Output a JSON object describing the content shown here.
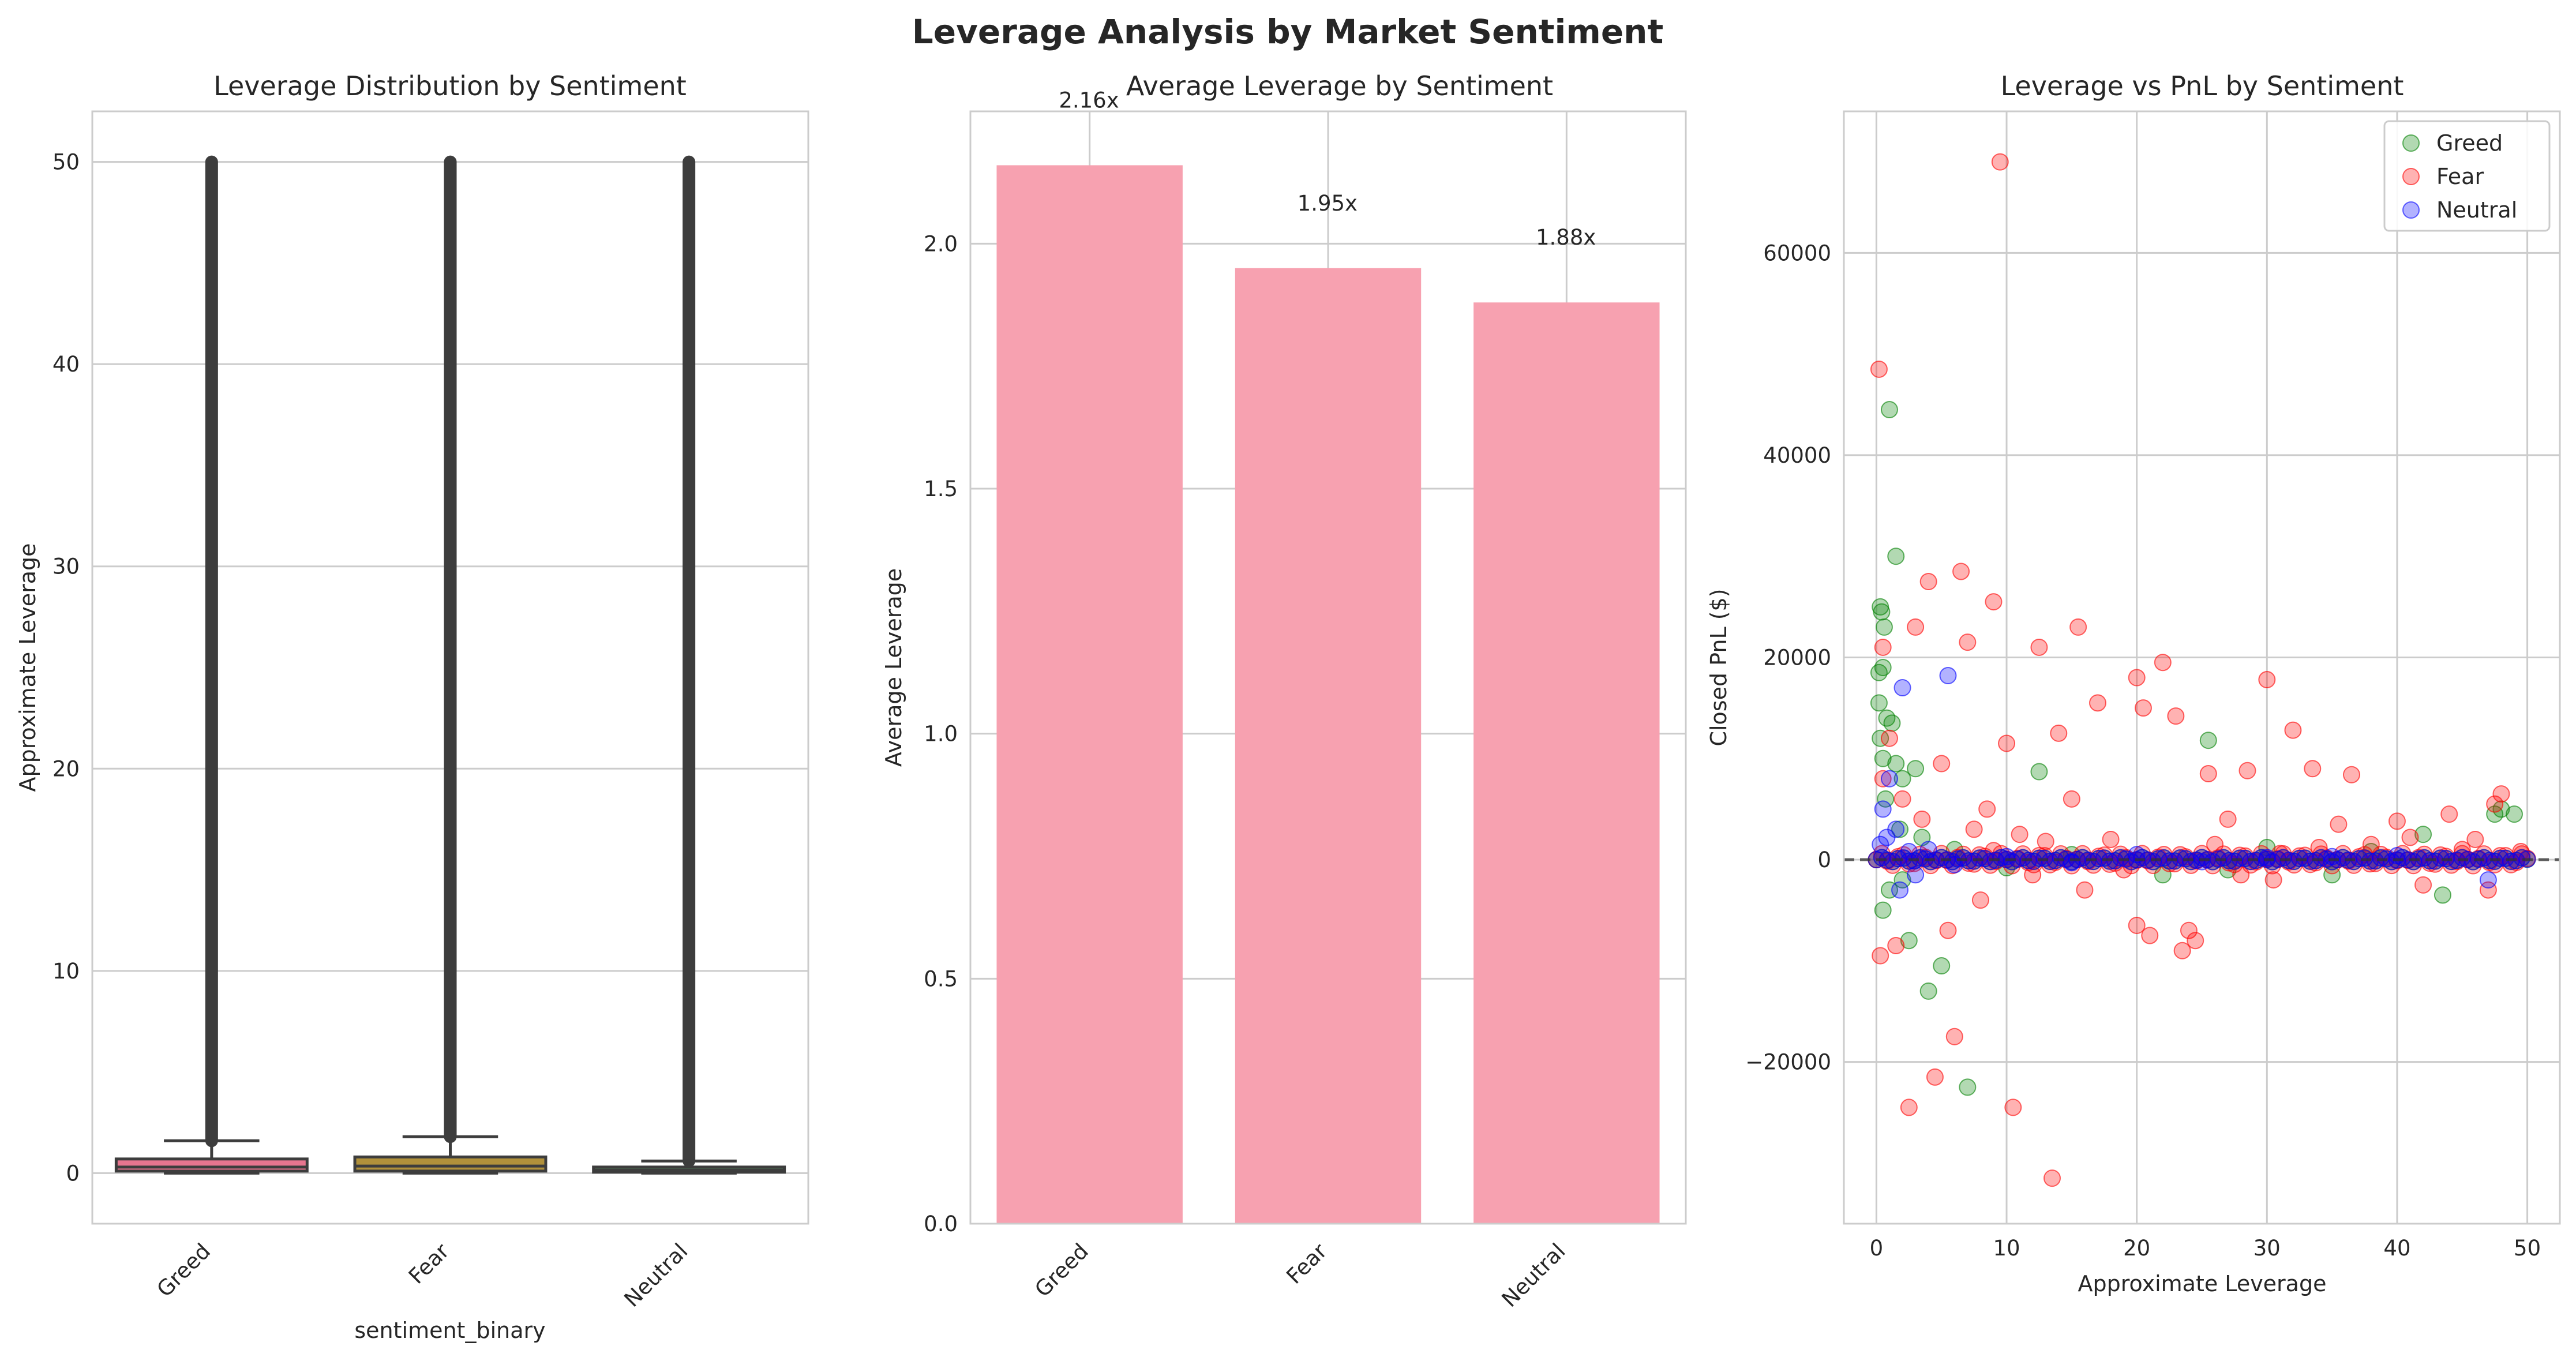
{
  "figure": {
    "title": "Leverage Analysis by Market Sentiment"
  },
  "colors": {
    "greed_box": "#e8758f",
    "fear_box": "#b1913b",
    "neutral_box": "#5a9d6a",
    "bar": "#f7a1b0",
    "greed_point": "#008000",
    "fear_point": "#ff0000",
    "neutral_point": "#0000ff"
  },
  "chart_data": [
    {
      "type": "box",
      "title": "Leverage Distribution by Sentiment",
      "xlabel": "sentiment_binary",
      "ylabel": "Approximate Leverage",
      "categories": [
        "Greed",
        "Fear",
        "Neutral"
      ],
      "boxes": [
        {
          "name": "Greed",
          "q1": 0.1,
          "median": 0.3,
          "q3": 0.7,
          "whisker_low": 0.0,
          "whisker_high": 1.6,
          "outliers_range": [
            1.6,
            50
          ]
        },
        {
          "name": "Fear",
          "q1": 0.1,
          "median": 0.35,
          "q3": 0.8,
          "whisker_low": 0.0,
          "whisker_high": 1.8,
          "outliers_range": [
            1.8,
            50
          ]
        },
        {
          "name": "Neutral",
          "q1": 0.05,
          "median": 0.15,
          "q3": 0.3,
          "whisker_low": 0.0,
          "whisker_high": 0.6,
          "outliers_range": [
            0.6,
            50
          ]
        }
      ],
      "ylim": [
        -2.5,
        52.5
      ],
      "yticks": [
        0,
        10,
        20,
        30,
        40,
        50
      ],
      "grid": true
    },
    {
      "type": "bar",
      "title": "Average Leverage by Sentiment",
      "xlabel": "",
      "ylabel": "Average Leverage",
      "categories": [
        "Greed",
        "Fear",
        "Neutral"
      ],
      "values": [
        2.16,
        1.95,
        1.88
      ],
      "data_labels": [
        "2.16x",
        "1.95x",
        "1.88x"
      ],
      "ylim": [
        0,
        2.27
      ],
      "yticks": [
        0.0,
        0.5,
        1.0,
        1.5,
        2.0
      ],
      "ytick_labels": [
        "0.0",
        "0.5",
        "1.0",
        "1.5",
        "2.0"
      ],
      "grid": true
    },
    {
      "type": "scatter",
      "title": "Leverage vs PnL by Sentiment",
      "xlabel": "Approximate Leverage",
      "ylabel": "Closed PnL ($)",
      "xlim": [
        -2.5,
        52.5
      ],
      "ylim": [
        -36000,
        74000
      ],
      "xticks": [
        0,
        10,
        20,
        30,
        40,
        50
      ],
      "yticks": [
        -20000,
        0,
        20000,
        40000,
        60000
      ],
      "reference_line_y": 0,
      "legend_position": "top-right",
      "grid": true,
      "series": [
        {
          "name": "Greed",
          "points": [
            [
              0.2,
              18500
            ],
            [
              0.5,
              19000
            ],
            [
              1.0,
              44500
            ],
            [
              1.5,
              30000
            ],
            [
              0.3,
              25000
            ],
            [
              0.4,
              24500
            ],
            [
              0.6,
              23000
            ],
            [
              0.2,
              15500
            ],
            [
              0.8,
              14000
            ],
            [
              1.2,
              13500
            ],
            [
              0.5,
              10000
            ],
            [
              1.5,
              9500
            ],
            [
              2.0,
              8000
            ],
            [
              3.0,
              9000
            ],
            [
              12.5,
              8700
            ],
            [
              25.5,
              11800
            ],
            [
              2.5,
              -8000
            ],
            [
              4.0,
              -13000
            ],
            [
              5.0,
              -10500
            ],
            [
              7.0,
              -22500
            ],
            [
              1.0,
              -3000
            ],
            [
              0.5,
              -5000
            ],
            [
              2.0,
              -2000
            ],
            [
              43.5,
              -3500
            ],
            [
              47.5,
              4500
            ],
            [
              48.0,
              5000
            ],
            [
              49.0,
              4500
            ],
            [
              42.0,
              2500
            ],
            [
              30.0,
              1200
            ],
            [
              35.0,
              -1500
            ],
            [
              22.0,
              -1500
            ],
            [
              0.3,
              12000
            ],
            [
              0.7,
              6000
            ],
            [
              1.8,
              3000
            ],
            [
              6.0,
              1000
            ],
            [
              15.0,
              500
            ],
            [
              38.0,
              800
            ],
            [
              27.0,
              -1000
            ],
            [
              10.0,
              -800
            ],
            [
              3.5,
              2200
            ]
          ]
        },
        {
          "name": "Fear",
          "points": [
            [
              0.2,
              48500
            ],
            [
              9.5,
              69000
            ],
            [
              0.5,
              21000
            ],
            [
              4.0,
              27500
            ],
            [
              6.5,
              28500
            ],
            [
              9.0,
              25500
            ],
            [
              15.5,
              23000
            ],
            [
              7.0,
              21500
            ],
            [
              3.0,
              23000
            ],
            [
              12.5,
              21000
            ],
            [
              20.0,
              18000
            ],
            [
              22.0,
              19500
            ],
            [
              30.0,
              17800
            ],
            [
              17.0,
              15500
            ],
            [
              23.0,
              14200
            ],
            [
              32.0,
              12800
            ],
            [
              14.0,
              12500
            ],
            [
              20.5,
              15000
            ],
            [
              10.0,
              11500
            ],
            [
              5.0,
              9500
            ],
            [
              25.5,
              8500
            ],
            [
              28.5,
              8800
            ],
            [
              33.5,
              9000
            ],
            [
              36.5,
              8400
            ],
            [
              48.0,
              6500
            ],
            [
              47.5,
              5500
            ],
            [
              44.0,
              4500
            ],
            [
              40.0,
              3800
            ],
            [
              2.5,
              -24500
            ],
            [
              10.5,
              -24500
            ],
            [
              4.5,
              -21500
            ],
            [
              6.0,
              -17500
            ],
            [
              13.5,
              -31500
            ],
            [
              20.0,
              -6500
            ],
            [
              23.5,
              -9000
            ],
            [
              24.0,
              -7000
            ],
            [
              24.5,
              -8000
            ],
            [
              21.0,
              -7500
            ],
            [
              0.3,
              -9500
            ],
            [
              1.5,
              -8500
            ],
            [
              5.5,
              -7000
            ],
            [
              8.0,
              -4000
            ],
            [
              16.0,
              -3000
            ],
            [
              30.5,
              -2000
            ],
            [
              42.0,
              -2500
            ],
            [
              47.0,
              -3000
            ],
            [
              0.5,
              8000
            ],
            [
              1.0,
              12000
            ],
            [
              2.0,
              6000
            ],
            [
              3.5,
              4000
            ],
            [
              7.5,
              3000
            ],
            [
              11.0,
              2500
            ],
            [
              18.0,
              2000
            ],
            [
              26.0,
              1500
            ],
            [
              34.0,
              1200
            ],
            [
              45.0,
              1000
            ],
            [
              49.5,
              800
            ],
            [
              38.0,
              1500
            ],
            [
              28.0,
              -1500
            ],
            [
              19.0,
              -1000
            ],
            [
              13.0,
              1800
            ],
            [
              8.5,
              5000
            ],
            [
              35.5,
              3500
            ],
            [
              41.0,
              2200
            ],
            [
              15.0,
              6000
            ],
            [
              27.0,
              4000
            ],
            [
              12.0,
              -1500
            ],
            [
              46.0,
              2000
            ],
            [
              31.0,
              600
            ],
            [
              9.0,
              900
            ]
          ]
        },
        {
          "name": "Neutral",
          "points": [
            [
              2.0,
              17000
            ],
            [
              5.5,
              18200
            ],
            [
              1.0,
              8000
            ],
            [
              0.5,
              5000
            ],
            [
              1.5,
              3000
            ],
            [
              0.3,
              1500
            ],
            [
              2.5,
              800
            ],
            [
              3.0,
              -1500
            ],
            [
              1.8,
              -3000
            ],
            [
              47.0,
              -2000
            ],
            [
              20.0,
              500
            ],
            [
              10.0,
              300
            ],
            [
              30.0,
              200
            ],
            [
              0.8,
              2200
            ],
            [
              4.0,
              1000
            ],
            [
              6.0,
              -500
            ],
            [
              15.0,
              -300
            ],
            [
              40.0,
              400
            ],
            [
              25.0,
              -200
            ],
            [
              35.0,
              300
            ]
          ]
        }
      ]
    }
  ]
}
